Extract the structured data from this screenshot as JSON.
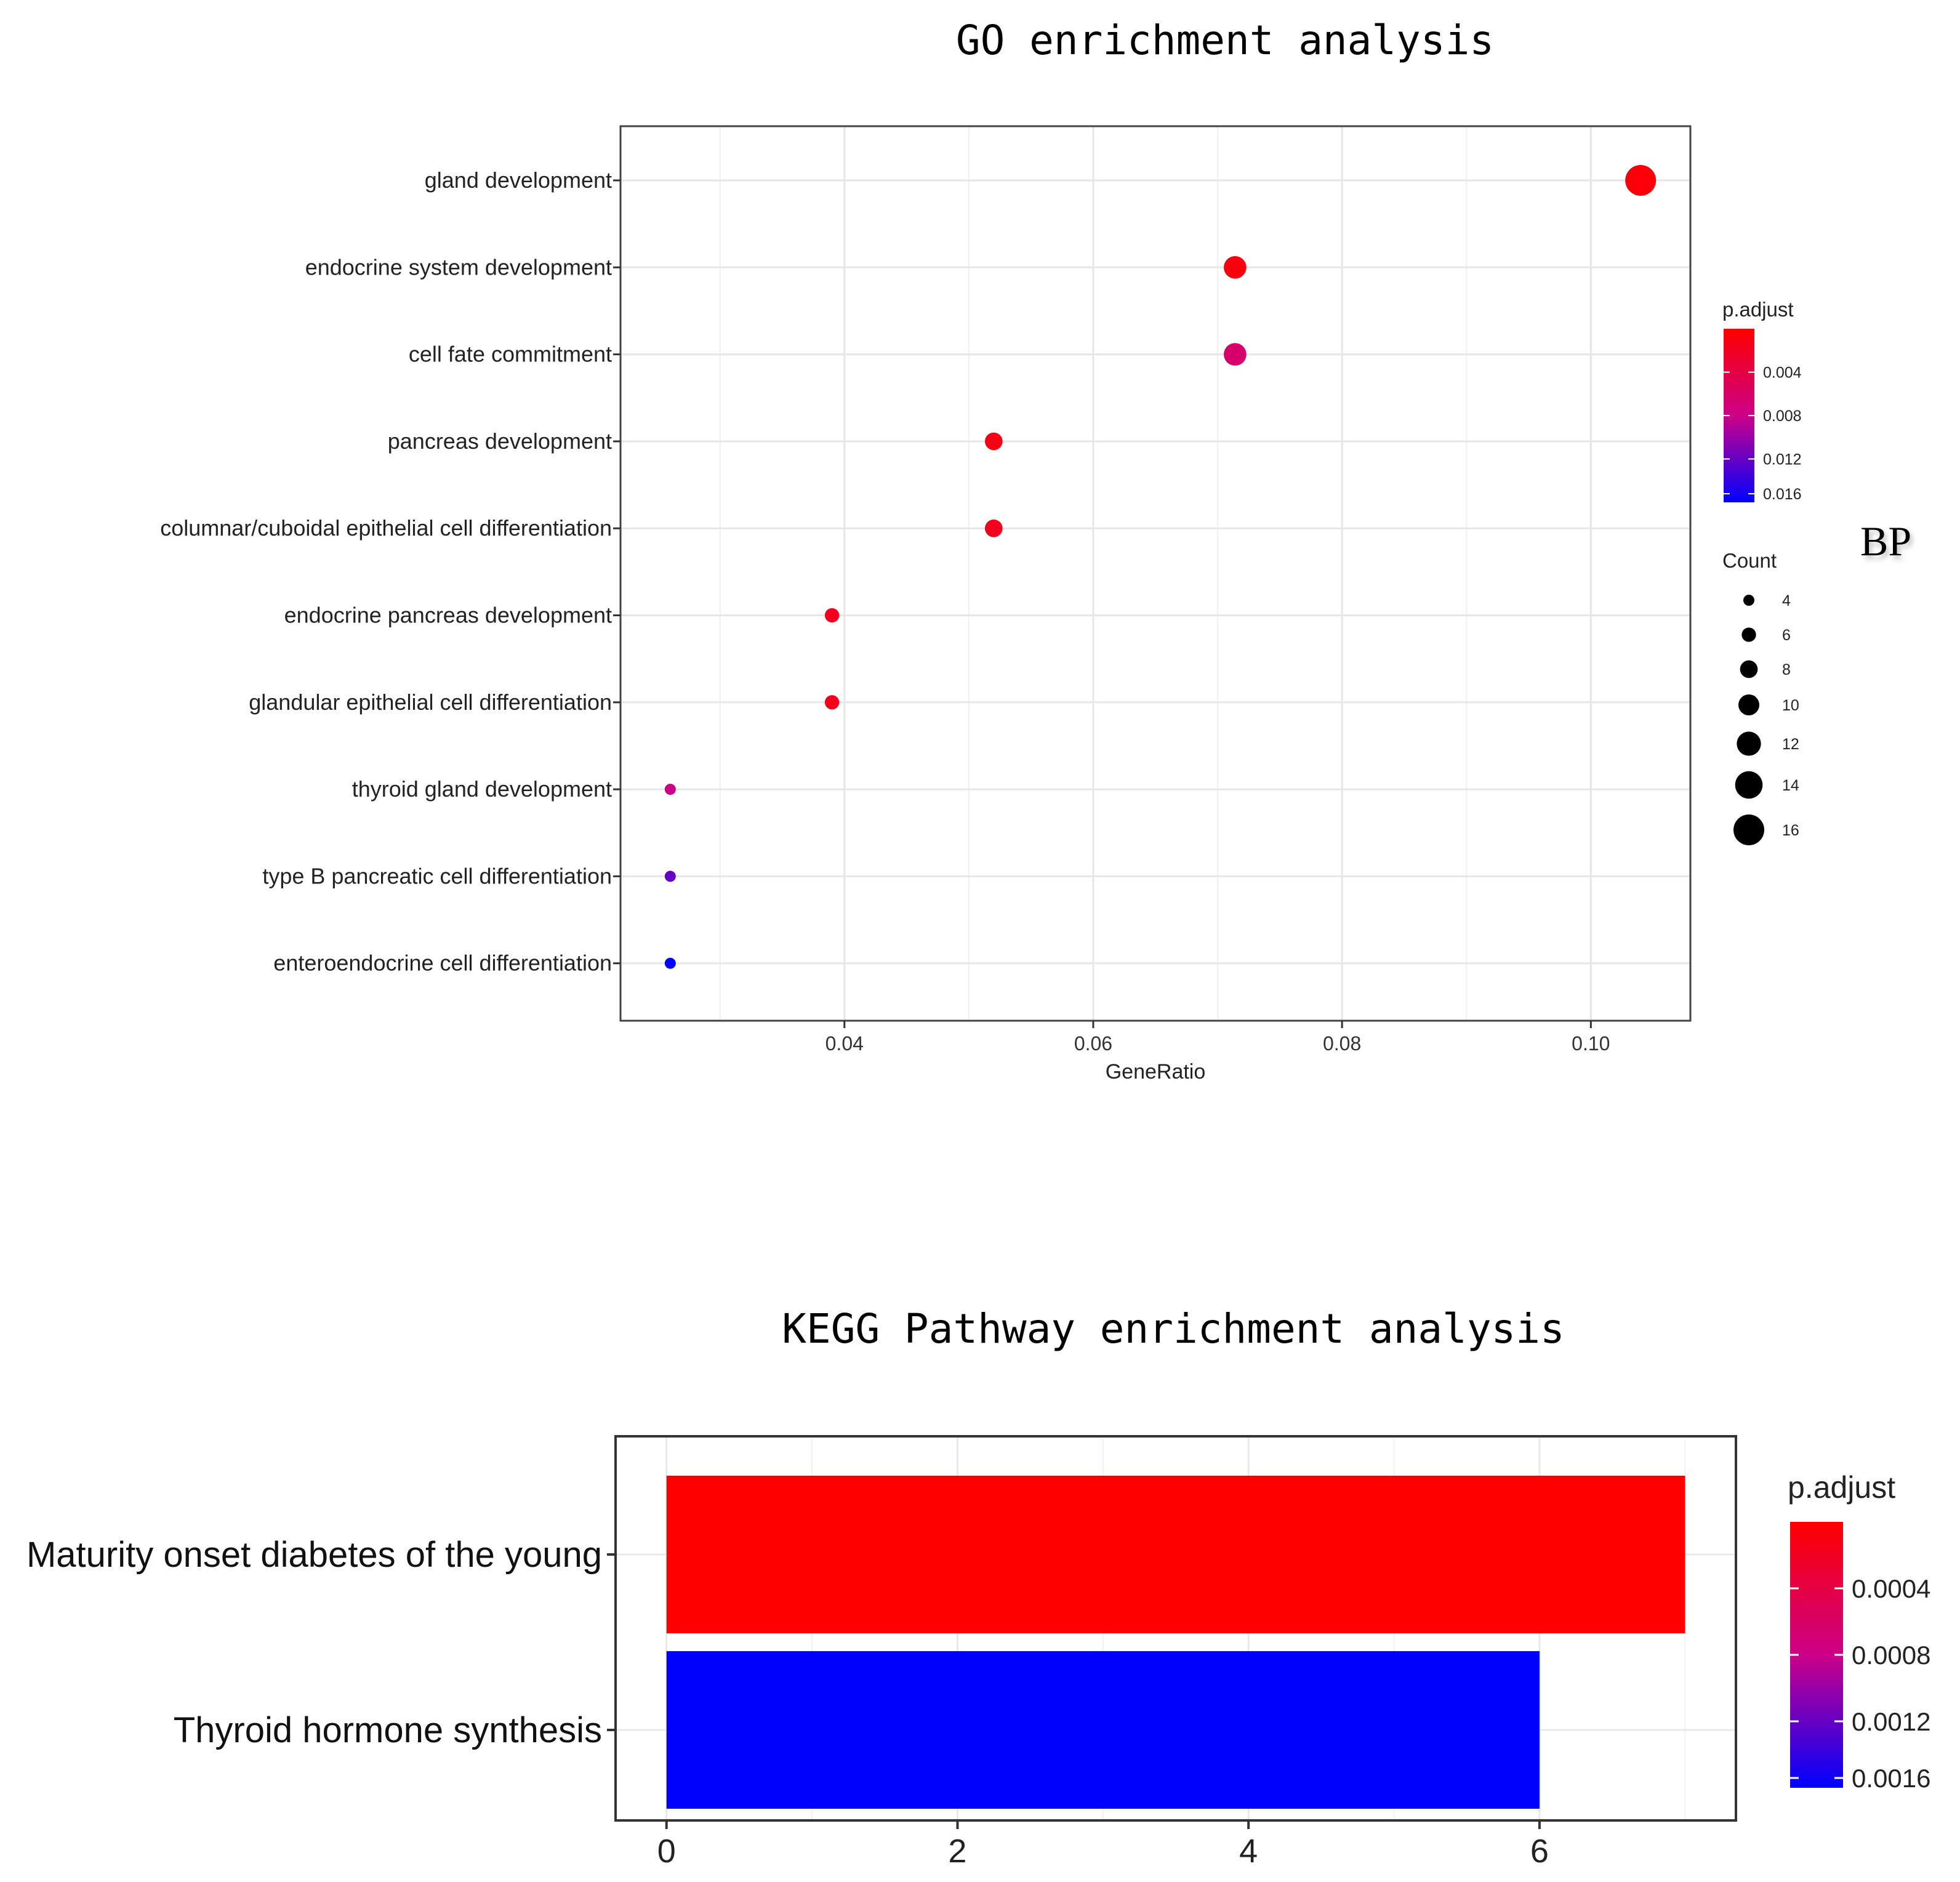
{
  "chart_data": [
    {
      "type": "scatter",
      "title": "GO enrichment analysis",
      "xlabel": "GeneRatio",
      "ylabel": "",
      "xlim": [
        0.022,
        0.108
      ],
      "xticks": [
        "0.04",
        "0.06",
        "0.08",
        "0.10"
      ],
      "xtick_values": [
        0.04,
        0.06,
        0.08,
        0.1
      ],
      "grid": true,
      "side_label": "BP",
      "categories": [
        "gland development",
        "endocrine system development",
        "cell fate commitment",
        "pancreas development",
        "columnar/cuboidal epithelial cell differentiation",
        "endocrine pancreas development",
        "glandular epithelial cell differentiation",
        "thyroid gland development",
        "type B pancreatic cell differentiation",
        "enteroendocrine cell differentiation"
      ],
      "x": [
        0.104,
        0.0714,
        0.0714,
        0.052,
        0.052,
        0.039,
        0.039,
        0.026,
        0.026,
        0.026
      ],
      "count": [
        16,
        11,
        11,
        8,
        8,
        6,
        6,
        4,
        4,
        4
      ],
      "p_adjust": [
        0.0005,
        0.0008,
        0.0063,
        0.0012,
        0.0018,
        0.0018,
        0.0015,
        0.008,
        0.012,
        0.016
      ],
      "legend": {
        "color_title": "p.adjust",
        "color_ticks": [
          "0.004",
          "0.008",
          "0.012",
          "0.016"
        ],
        "color_tick_values": [
          0.004,
          0.008,
          0.012,
          0.016
        ],
        "color_range": [
          0.0,
          0.016
        ],
        "size_title": "Count",
        "size_labels": [
          "4",
          "6",
          "8",
          "10",
          "12",
          "14",
          "16"
        ],
        "size_values": [
          4,
          6,
          8,
          10,
          12,
          14,
          16
        ]
      },
      "colors": {
        "high": "#ff0000",
        "low": "#0000ff"
      }
    },
    {
      "type": "bar",
      "orientation": "horizontal",
      "title": "KEGG Pathway enrichment analysis",
      "xlabel": "",
      "ylabel": "",
      "xlim": [
        -0.35,
        7.35
      ],
      "xticks": [
        "0",
        "2",
        "4",
        "6"
      ],
      "xtick_values": [
        0,
        2,
        4,
        6
      ],
      "grid": true,
      "categories": [
        "Maturity onset diabetes of the young",
        "Thyroid hormone synthesis"
      ],
      "values": [
        7,
        6
      ],
      "p_adjust": [
        0.0,
        0.0016
      ],
      "legend": {
        "color_title": "p.adjust",
        "color_ticks": [
          "0.0004",
          "0.0008",
          "0.0012",
          "0.0016"
        ],
        "color_tick_values": [
          0.0004,
          0.0008,
          0.0012,
          0.0016
        ],
        "color_range": [
          0.0,
          0.0016
        ]
      },
      "colors": {
        "high": "#ff0000",
        "low": "#0000ff"
      }
    }
  ]
}
